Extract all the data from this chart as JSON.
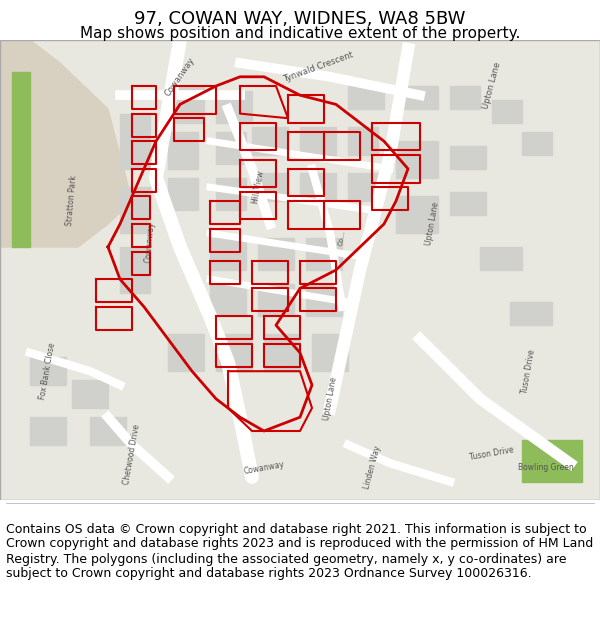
{
  "title": "97, COWAN WAY, WIDNES, WA8 5BW",
  "subtitle": "Map shows position and indicative extent of the property.",
  "title_fontsize": 13,
  "subtitle_fontsize": 11,
  "footer_text": "Contains OS data © Crown copyright and database right 2021. This information is subject to Crown copyright and database rights 2023 and is reproduced with the permission of HM Land Registry. The polygons (including the associated geometry, namely x, y co-ordinates) are subject to Crown copyright and database rights 2023 Ordnance Survey 100026316.",
  "footer_fontsize": 9,
  "bg_color": "#f5f5f0",
  "map_bg": "#e8e8e0",
  "title_area_bg": "#ffffff",
  "footer_area_bg": "#ffffff",
  "map_border_color": "#cccccc",
  "red_color": "#cc0000",
  "figure_width": 6.0,
  "figure_height": 6.25
}
